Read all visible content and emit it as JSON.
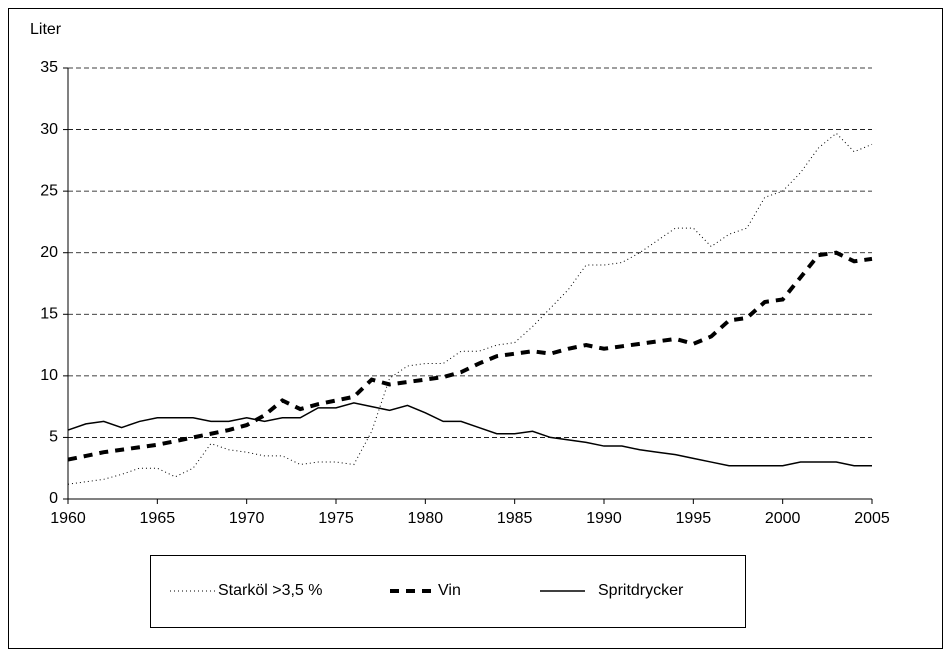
{
  "chart_data": {
    "type": "line",
    "y_label": "Liter",
    "x": [
      1960,
      1961,
      1962,
      1963,
      1964,
      1965,
      1966,
      1967,
      1968,
      1969,
      1970,
      1971,
      1972,
      1973,
      1974,
      1975,
      1976,
      1977,
      1978,
      1979,
      1980,
      1981,
      1982,
      1983,
      1984,
      1985,
      1986,
      1987,
      1988,
      1989,
      1990,
      1991,
      1992,
      1993,
      1994,
      1995,
      1996,
      1997,
      1998,
      1999,
      2000,
      2001,
      2002,
      2003,
      2004,
      2005
    ],
    "series": [
      {
        "name": "Starköl >3,5 %",
        "color": "#000000",
        "line_style": "dotted",
        "values": [
          1.2,
          1.4,
          1.6,
          2.0,
          2.5,
          2.5,
          1.8,
          2.5,
          4.5,
          4.0,
          3.8,
          3.5,
          3.5,
          2.8,
          3.0,
          3.0,
          2.8,
          5.5,
          9.8,
          10.8,
          11.0,
          11.0,
          12.0,
          12.0,
          12.5,
          12.7,
          14.0,
          15.5,
          17.0,
          19.0,
          19.0,
          19.2,
          20.0,
          21.0,
          22.0,
          22.0,
          20.5,
          21.5,
          22.0,
          24.5,
          25.0,
          26.5,
          28.5,
          29.7,
          28.2,
          28.8
        ]
      },
      {
        "name": "Vin",
        "color": "#000000",
        "line_style": "dashed",
        "values": [
          3.2,
          3.5,
          3.8,
          4.0,
          4.2,
          4.4,
          4.7,
          5.0,
          5.3,
          5.6,
          6.0,
          6.8,
          8.0,
          7.3,
          7.7,
          8.0,
          8.3,
          9.7,
          9.3,
          9.5,
          9.7,
          9.9,
          10.3,
          11.0,
          11.6,
          11.8,
          12.0,
          11.8,
          12.2,
          12.5,
          12.2,
          12.4,
          12.6,
          12.8,
          13.0,
          12.6,
          13.2,
          14.5,
          14.7,
          16.0,
          16.2,
          18.0,
          19.8,
          20.0,
          19.3,
          19.5
        ]
      },
      {
        "name": "Spritdrycker",
        "color": "#000000",
        "line_style": "solid",
        "values": [
          5.6,
          6.1,
          6.3,
          5.8,
          6.3,
          6.6,
          6.6,
          6.6,
          6.3,
          6.3,
          6.6,
          6.3,
          6.6,
          6.6,
          7.4,
          7.4,
          7.8,
          7.5,
          7.2,
          7.6,
          7.0,
          6.3,
          6.3,
          5.8,
          5.3,
          5.3,
          5.5,
          5.0,
          4.8,
          4.6,
          4.3,
          4.3,
          4.0,
          3.8,
          3.6,
          3.3,
          3.0,
          2.7,
          2.7,
          2.7,
          2.7,
          3.0,
          3.0,
          3.0,
          2.7,
          2.7
        ]
      }
    ],
    "xlim": [
      1960,
      2005
    ],
    "xticks": [
      1960,
      1965,
      1970,
      1975,
      1980,
      1985,
      1990,
      1995,
      2000,
      2005
    ],
    "ylim": [
      0,
      35
    ],
    "yticks": [
      0,
      5,
      10,
      15,
      20,
      25,
      30,
      35
    ],
    "grid": true,
    "legend": "bottom"
  }
}
